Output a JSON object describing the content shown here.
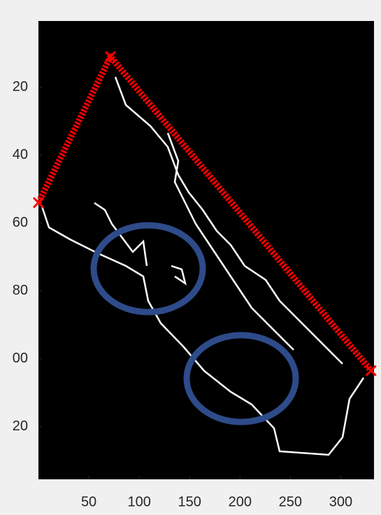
{
  "chart_data": {
    "type": "image",
    "xlim": [
      0,
      333
    ],
    "ylim": [
      0.5,
      135.5
    ],
    "y_reversed": true,
    "xticks": [
      50,
      100,
      150,
      200,
      250,
      300
    ],
    "yticks": [
      20,
      40,
      60,
      80,
      {
        "value": 100,
        "label": "00"
      },
      {
        "value": 120,
        "label": "20"
      }
    ],
    "series": [
      {
        "color": "#ff0000",
        "marker": "x",
        "x": [
          0,
          71.5,
          330
        ],
        "values": [
          54,
          11,
          103.5
        ]
      }
    ]
  }
}
